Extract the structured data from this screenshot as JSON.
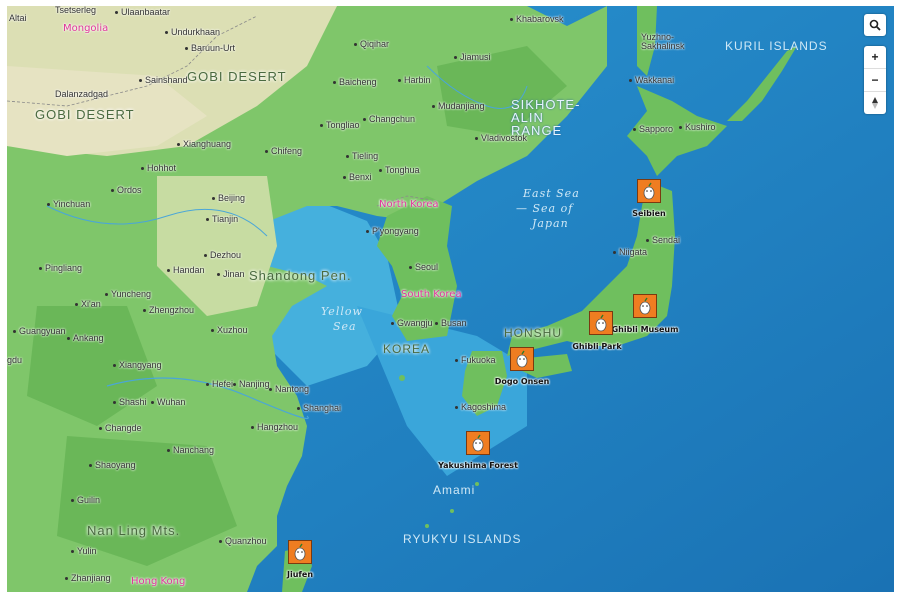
{
  "controls": {
    "search_icon": "search-icon",
    "zoom_in": "+",
    "zoom_out": "−",
    "compass_icon": "compass-icon"
  },
  "countries": [
    "Mongolia",
    "North Korea",
    "South Korea",
    "Hong Kong"
  ],
  "regions": [
    "Gobi Desert",
    "Gobi Desert",
    "Shandong Pen.",
    "Korea",
    "Honshu",
    "Sikhote-Alin Range",
    "Kuril Islands",
    "Nan Ling Mts.",
    "Amami",
    "Ryukyu Islands"
  ],
  "seas": {
    "east_sea_1": "East Sea",
    "east_sea_2": "— Sea of",
    "east_sea_3": "Japan",
    "yellow_1": "Yellow",
    "yellow_2": "Sea"
  },
  "cities": [
    "Tsetserleg",
    "Ulaanbaatar",
    "Undurkhaan",
    "Baruun-Urt",
    "Sainshand",
    "Dalanzadgad",
    "Altai",
    "Xianghuang",
    "Hohhot",
    "Ordos",
    "Yinchuan",
    "Beijing",
    "Tianjin",
    "Chifeng",
    "Tongliao",
    "Changchun",
    "Qiqihar",
    "Harbin",
    "Baicheng",
    "Jiamusi",
    "Mudanjiang",
    "Khabarovsk",
    "Vladivostok",
    "Tieling",
    "Tonghua",
    "Benxi",
    "P'yongyang",
    "Seoul",
    "Gwangju",
    "Busan",
    "Dezhou",
    "Handan",
    "Jinan",
    "Pingliang",
    "Xi'an",
    "Yuncheng",
    "Zhengzhou",
    "Guangyuan",
    "Ankang",
    "Xuzhou",
    "Xiangyang",
    "Hefei",
    "Nanjing",
    "Nantong",
    "Shanghai",
    "Shashi",
    "Wuhan",
    "Hangzhou",
    "Changde",
    "Nanchang",
    "Shaoyang",
    "Guilin",
    "Yulin",
    "Zhanjiang",
    "Quanzhou",
    "Yuzhno-Sakhalinsk",
    "Wakkanai",
    "Sapporo",
    "Kushiro",
    "Niigata",
    "Sendai",
    "Fukuoka",
    "Kagoshima",
    "gdu"
  ],
  "markers": [
    "Seibien",
    "Ghibli Museum",
    "Ghibli Park",
    "Dogo Onsen",
    "Yakushima Forest",
    "Jiufen"
  ],
  "colors": {
    "marker_fill": "#ef7d21",
    "sea": "#1f86c6",
    "land": "#7fc66a",
    "country_label": "#e0359a"
  }
}
